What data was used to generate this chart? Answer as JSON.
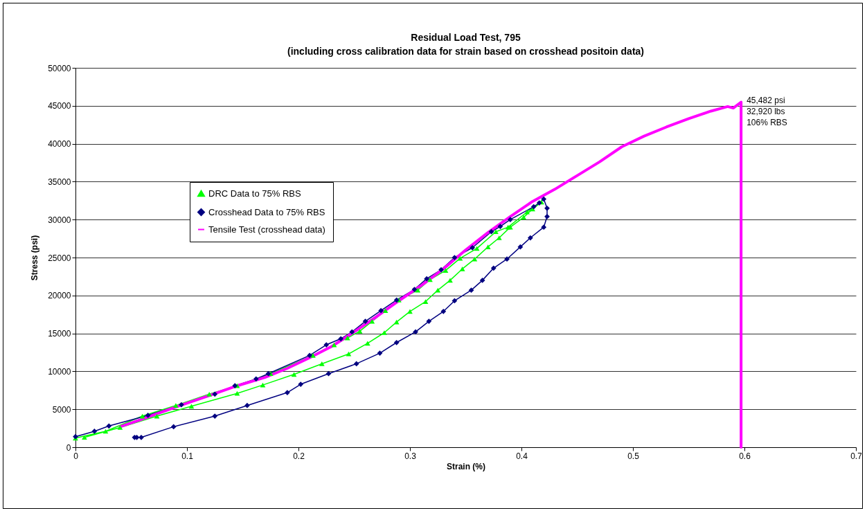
{
  "chart_data": {
    "type": "line",
    "title": "Residual Load Test, 795\n(including cross calibration data for strain based on crosshead positoin data)",
    "xlabel": "Strain (%)",
    "ylabel": "Stress (psi)",
    "xlim": [
      0,
      0.7
    ],
    "xticks": [
      0,
      0.1,
      0.2,
      0.3,
      0.4,
      0.5,
      0.6,
      0.7
    ],
    "ylim": [
      0,
      50000
    ],
    "yticks": [
      0,
      5000,
      10000,
      15000,
      20000,
      25000,
      30000,
      35000,
      40000,
      45000,
      50000
    ],
    "grid": "y",
    "legend": "top left",
    "annotations": [
      {
        "text": "45,482 psi\n32,920 lbs\n106% RBS",
        "x": 0.597,
        "y": 45482
      }
    ],
    "series": [
      {
        "name": "DRC Data to 75% RBS",
        "color": "#00ff00",
        "marker": "triangle",
        "x": [
          0,
          0.027,
          0.06,
          0.09,
          0.12,
          0.145,
          0.175,
          0.213,
          0.232,
          0.244,
          0.255,
          0.266,
          0.278,
          0.29,
          0.307,
          0.318,
          0.332,
          0.345,
          0.36,
          0.377,
          0.388,
          0.405,
          0.418,
          0.41,
          0.402,
          0.39,
          0.38,
          0.37,
          0.358,
          0.347,
          0.336,
          0.325,
          0.314,
          0.3,
          0.288,
          0.277,
          0.262,
          0.245,
          0.221,
          0.196,
          0.168,
          0.145,
          0.104,
          0.073,
          0.04,
          0.008
        ],
        "values": [
          1200,
          2100,
          4100,
          5500,
          7000,
          8100,
          9700,
          12100,
          13500,
          14400,
          15300,
          16600,
          18000,
          19400,
          20700,
          22100,
          23300,
          24900,
          26200,
          28400,
          29000,
          31000,
          32300,
          31400,
          30300,
          29000,
          27600,
          26400,
          24800,
          23500,
          22000,
          20700,
          19200,
          17900,
          16500,
          15100,
          13700,
          12300,
          11000,
          9600,
          8200,
          7100,
          5400,
          4100,
          2600,
          1300
        ]
      },
      {
        "name": "Crosshead Data to 75% RBS",
        "color": "#000080",
        "marker": "diamond",
        "x": [
          0,
          0.017,
          0.03,
          0.065,
          0.095,
          0.125,
          0.143,
          0.162,
          0.173,
          0.21,
          0.225,
          0.238,
          0.248,
          0.26,
          0.274,
          0.288,
          0.304,
          0.315,
          0.328,
          0.34,
          0.356,
          0.373,
          0.381,
          0.39,
          0.411,
          0.416,
          0.42,
          0.423,
          0.423,
          0.42,
          0.408,
          0.399,
          0.387,
          0.375,
          0.365,
          0.355,
          0.34,
          0.33,
          0.317,
          0.305,
          0.288,
          0.273,
          0.252,
          0.227,
          0.202,
          0.19,
          0.154,
          0.125,
          0.088,
          0.059,
          0.055,
          0.053
        ],
        "values": [
          1400,
          2100,
          2800,
          4200,
          5600,
          7000,
          8100,
          9000,
          9700,
          12100,
          13500,
          14300,
          15200,
          16600,
          18000,
          19400,
          20800,
          22200,
          23400,
          25000,
          26300,
          28400,
          29100,
          30000,
          31700,
          32200,
          32700,
          31500,
          30400,
          29000,
          27600,
          26400,
          24800,
          23600,
          22000,
          20700,
          19300,
          17900,
          16600,
          15200,
          13800,
          12400,
          11000,
          9700,
          8300,
          7200,
          5500,
          4100,
          2700,
          1300,
          1300,
          1300
        ]
      },
      {
        "name": "Tensile Test (crosshead data)",
        "color": "#ff00ff",
        "marker": "none",
        "x": [
          0.04,
          0.06,
          0.09,
          0.12,
          0.145,
          0.17,
          0.19,
          0.21,
          0.23,
          0.25,
          0.27,
          0.29,
          0.31,
          0.33,
          0.35,
          0.37,
          0.39,
          0.41,
          0.43,
          0.45,
          0.47,
          0.49,
          0.51,
          0.53,
          0.55,
          0.57,
          0.585,
          0.59,
          0.597,
          0.597
        ],
        "values": [
          2700,
          3700,
          5300,
          6800,
          8100,
          9200,
          10400,
          11800,
          13300,
          15200,
          17200,
          19300,
          21300,
          23500,
          26000,
          28300,
          30400,
          32400,
          34000,
          35800,
          37600,
          39600,
          41000,
          42200,
          43300,
          44300,
          44900,
          44700,
          45482,
          0
        ]
      }
    ]
  }
}
